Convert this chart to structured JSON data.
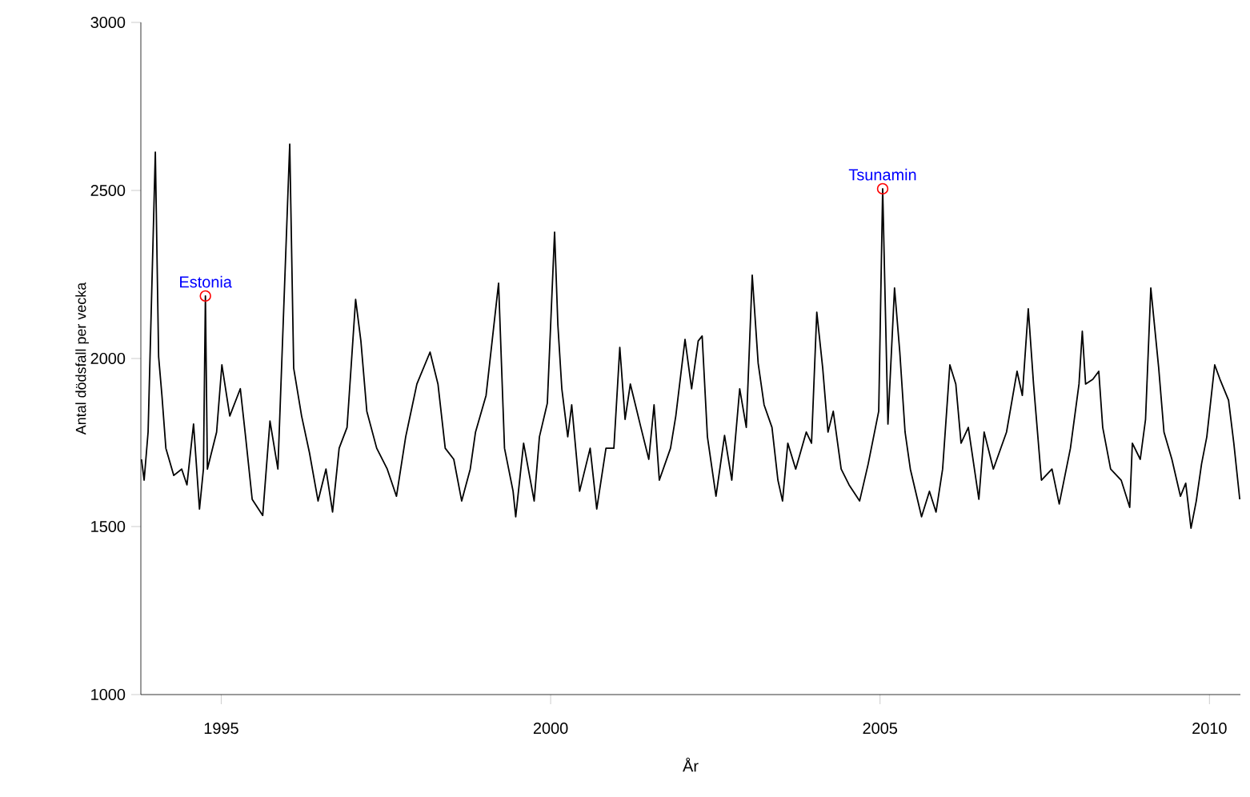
{
  "chart_data": {
    "type": "line",
    "xlabel": "År",
    "ylabel": "Antal dödsfall per vecka",
    "xlim": [
      1993.78,
      2010.47
    ],
    "ylim": [
      1000,
      3000
    ],
    "xticks": [
      1995,
      2000,
      2005,
      2010
    ],
    "yticks": [
      1000,
      1500,
      2000,
      2500,
      3000
    ],
    "annotations": [
      {
        "text": "Estonia",
        "x": 1994.76,
        "y": 2186
      },
      {
        "text": "Tsunamin",
        "x": 2005.04,
        "y": 2505
      }
    ],
    "series": [
      {
        "color": "#000000",
        "x": [
          1993.79,
          1993.83,
          1993.89,
          1994.0,
          1994.05,
          1994.1,
          1994.16,
          1994.28,
          1994.4,
          1994.48,
          1994.58,
          1994.67,
          1994.73,
          1994.76,
          1994.79,
          1994.93,
          1995.01,
          1995.13,
          1995.29,
          1995.37,
          1995.47,
          1995.63,
          1995.74,
          1995.86,
          1996.04,
          1996.1,
          1996.22,
          1996.34,
          1996.47,
          1996.59,
          1996.69,
          1996.79,
          1996.91,
          1997.04,
          1997.12,
          1997.21,
          1997.36,
          1997.52,
          1997.66,
          1997.8,
          1997.97,
          1998.17,
          1998.29,
          1998.4,
          1998.53,
          1998.65,
          1998.78,
          1998.86,
          1999.02,
          1999.21,
          1999.3,
          1999.43,
          1999.47,
          1999.59,
          1999.75,
          1999.83,
          1999.95,
          2000.06,
          2000.11,
          2000.17,
          2000.26,
          2000.32,
          2000.44,
          2000.6,
          2000.7,
          2000.84,
          2000.96,
          2001.05,
          2001.13,
          2001.21,
          2001.37,
          2001.49,
          2001.57,
          2001.65,
          2001.82,
          2001.9,
          2002.04,
          2002.14,
          2002.24,
          2002.3,
          2002.38,
          2002.51,
          2002.64,
          2002.75,
          2002.87,
          2002.97,
          2003.06,
          2003.15,
          2003.24,
          2003.36,
          2003.45,
          2003.52,
          2003.6,
          2003.72,
          2003.88,
          2003.96,
          2004.04,
          2004.13,
          2004.21,
          2004.29,
          2004.41,
          2004.53,
          2004.69,
          2004.82,
          2004.98,
          2005.04,
          2005.12,
          2005.22,
          2005.3,
          2005.38,
          2005.46,
          2005.63,
          2005.75,
          2005.85,
          2005.95,
          2006.06,
          2006.15,
          2006.23,
          2006.34,
          2006.5,
          2006.58,
          2006.72,
          2006.92,
          2007.08,
          2007.16,
          2007.25,
          2007.33,
          2007.45,
          2007.61,
          2007.72,
          2007.89,
          2008.02,
          2008.07,
          2008.12,
          2008.23,
          2008.32,
          2008.38,
          2008.5,
          2008.66,
          2008.79,
          2008.83,
          2008.95,
          2009.03,
          2009.11,
          2009.23,
          2009.31,
          2009.43,
          2009.56,
          2009.64,
          2009.72,
          2009.8,
          2009.88,
          2009.96,
          2010.08,
          2010.16,
          2010.29,
          2010.37,
          2010.46
        ],
        "values": [
          1700,
          1638,
          1781,
          2614,
          2005,
          1890,
          1733,
          1652,
          1671,
          1624,
          1805,
          1552,
          1671,
          2186,
          1671,
          1781,
          1981,
          1829,
          1910,
          1767,
          1581,
          1533,
          1814,
          1671,
          2638,
          1971,
          1829,
          1719,
          1576,
          1671,
          1543,
          1733,
          1795,
          2176,
          2052,
          1843,
          1733,
          1671,
          1590,
          1767,
          1924,
          2019,
          1924,
          1733,
          1700,
          1576,
          1671,
          1781,
          1890,
          2224,
          1733,
          1605,
          1529,
          1748,
          1576,
          1767,
          1867,
          2376,
          2100,
          1910,
          1767,
          1862,
          1605,
          1733,
          1552,
          1733,
          1733,
          2033,
          1819,
          1924,
          1795,
          1700,
          1862,
          1638,
          1733,
          1829,
          2057,
          1910,
          2052,
          2067,
          1767,
          1590,
          1771,
          1638,
          1910,
          1795,
          2248,
          1986,
          1862,
          1795,
          1638,
          1576,
          1748,
          1671,
          1781,
          1748,
          2138,
          1971,
          1781,
          1843,
          1671,
          1624,
          1576,
          1686,
          1843,
          2505,
          1805,
          2210,
          2019,
          1781,
          1671,
          1529,
          1605,
          1543,
          1671,
          1981,
          1924,
          1748,
          1795,
          1581,
          1781,
          1671,
          1781,
          1962,
          1890,
          2148,
          1924,
          1638,
          1671,
          1567,
          1733,
          1924,
          2081,
          1924,
          1938,
          1962,
          1795,
          1671,
          1638,
          1557,
          1748,
          1700,
          1819,
          2210,
          1971,
          1781,
          1700,
          1590,
          1629,
          1495,
          1576,
          1686,
          1767,
          1981,
          1938,
          1876,
          1748,
          1581
        ]
      }
    ]
  }
}
